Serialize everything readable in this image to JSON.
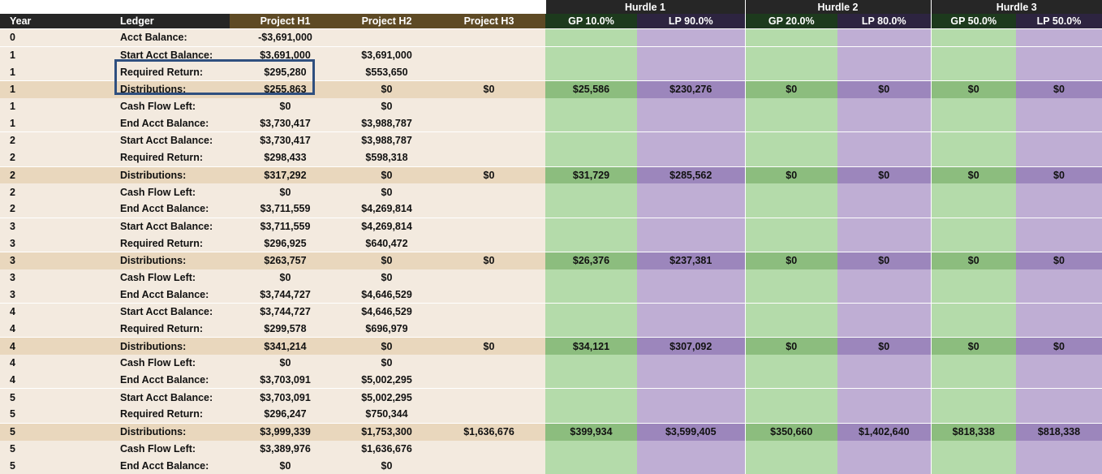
{
  "hurdles": [
    "Hurdle 1",
    "Hurdle 2",
    "Hurdle 3"
  ],
  "headers": {
    "year": "Year",
    "ledger": "Ledger",
    "projects": [
      "Project H1",
      "Project H2",
      "Project H3"
    ],
    "splits": [
      "GP 10.0%",
      "LP 90.0%",
      "GP 20.0%",
      "LP 80.0%",
      "GP 50.0%",
      "LP 50.0%"
    ]
  },
  "rows": [
    {
      "year": "0",
      "label": "Acct Balance:",
      "h1": "-$3,691,000",
      "h2": "",
      "h3": ""
    },
    {
      "year": "1",
      "label": "Start Acct Balance:",
      "h1": "$3,691,000",
      "h2": "$3,691,000",
      "h3": ""
    },
    {
      "year": "1",
      "label": "Required Return:",
      "h1": "$295,280",
      "h2": "$553,650",
      "h3": ""
    },
    {
      "year": "1",
      "label": "Distributions:",
      "h1": "$255,863",
      "h2": "$0",
      "h3": "$0",
      "splits": [
        "$25,586",
        "$230,276",
        "$0",
        "$0",
        "$0",
        "$0"
      ]
    },
    {
      "year": "1",
      "label": "Cash Flow Left:",
      "h1": "$0",
      "h2": "$0",
      "h3": ""
    },
    {
      "year": "1",
      "label": "End Acct Balance:",
      "h1": "$3,730,417",
      "h2": "$3,988,787",
      "h3": ""
    },
    {
      "year": "2",
      "label": "Start Acct Balance:",
      "h1": "$3,730,417",
      "h2": "$3,988,787",
      "h3": ""
    },
    {
      "year": "2",
      "label": "Required Return:",
      "h1": "$298,433",
      "h2": "$598,318",
      "h3": ""
    },
    {
      "year": "2",
      "label": "Distributions:",
      "h1": "$317,292",
      "h2": "$0",
      "h3": "$0",
      "splits": [
        "$31,729",
        "$285,562",
        "$0",
        "$0",
        "$0",
        "$0"
      ]
    },
    {
      "year": "2",
      "label": "Cash Flow Left:",
      "h1": "$0",
      "h2": "$0",
      "h3": ""
    },
    {
      "year": "2",
      "label": "End Acct Balance:",
      "h1": "$3,711,559",
      "h2": "$4,269,814",
      "h3": ""
    },
    {
      "year": "3",
      "label": "Start Acct Balance:",
      "h1": "$3,711,559",
      "h2": "$4,269,814",
      "h3": ""
    },
    {
      "year": "3",
      "label": "Required Return:",
      "h1": "$296,925",
      "h2": "$640,472",
      "h3": ""
    },
    {
      "year": "3",
      "label": "Distributions:",
      "h1": "$263,757",
      "h2": "$0",
      "h3": "$0",
      "splits": [
        "$26,376",
        "$237,381",
        "$0",
        "$0",
        "$0",
        "$0"
      ]
    },
    {
      "year": "3",
      "label": "Cash Flow Left:",
      "h1": "$0",
      "h2": "$0",
      "h3": ""
    },
    {
      "year": "3",
      "label": "End Acct Balance:",
      "h1": "$3,744,727",
      "h2": "$4,646,529",
      "h3": ""
    },
    {
      "year": "4",
      "label": "Start Acct Balance:",
      "h1": "$3,744,727",
      "h2": "$4,646,529",
      "h3": ""
    },
    {
      "year": "4",
      "label": "Required Return:",
      "h1": "$299,578",
      "h2": "$696,979",
      "h3": ""
    },
    {
      "year": "4",
      "label": "Distributions:",
      "h1": "$341,214",
      "h2": "$0",
      "h3": "$0",
      "splits": [
        "$34,121",
        "$307,092",
        "$0",
        "$0",
        "$0",
        "$0"
      ]
    },
    {
      "year": "4",
      "label": "Cash Flow Left:",
      "h1": "$0",
      "h2": "$0",
      "h3": ""
    },
    {
      "year": "4",
      "label": "End Acct Balance:",
      "h1": "$3,703,091",
      "h2": "$5,002,295",
      "h3": ""
    },
    {
      "year": "5",
      "label": "Start Acct Balance:",
      "h1": "$3,703,091",
      "h2": "$5,002,295",
      "h3": ""
    },
    {
      "year": "5",
      "label": "Required Return:",
      "h1": "$296,247",
      "h2": "$750,344",
      "h3": ""
    },
    {
      "year": "5",
      "label": "Distributions:",
      "h1": "$3,999,339",
      "h2": "$1,753,300",
      "h3": "$1,636,676",
      "splits": [
        "$399,934",
        "$3,599,405",
        "$350,660",
        "$1,402,640",
        "$818,338",
        "$818,338"
      ]
    },
    {
      "year": "5",
      "label": "Cash Flow Left:",
      "h1": "$3,389,976",
      "h2": "$1,636,676",
      "h3": ""
    },
    {
      "year": "5",
      "label": "End Acct Balance:",
      "h1": "$0",
      "h2": "$0",
      "h3": ""
    }
  ],
  "colors": {
    "header_dark": "#262626",
    "project_header": "#5e4a25",
    "gp_cell": "#b4dbaa",
    "lp_cell": "#bfaed4",
    "negative_text": "#c00000",
    "highlight_border": "#2f4f7f"
  }
}
